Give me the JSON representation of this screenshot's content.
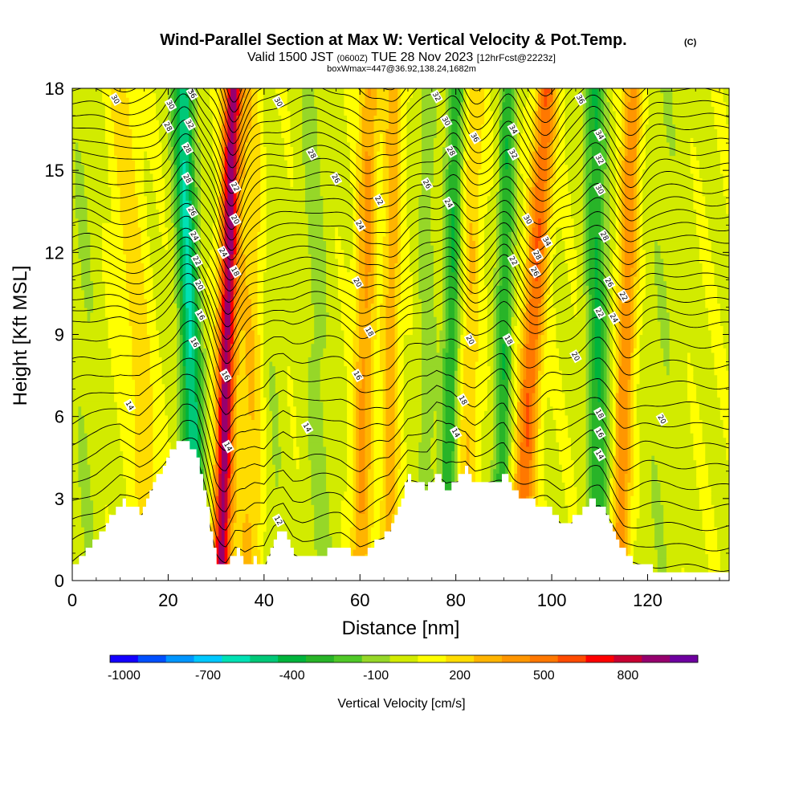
{
  "header": {
    "title": "Wind-Parallel Section at Max W: Vertical Velocity & Pot.Temp.",
    "copyright": "(C)",
    "valid_prefix": "Valid 1500 JST",
    "valid_zulu": "(0600Z)",
    "valid_date": "TUE 28 Nov 2023",
    "forecast": "[12hrFcst@2223z]",
    "box": "boxWmax=447@36.92,138.24,1682m"
  },
  "colors": {
    "levels": [
      "#1400ff",
      "#0050ff",
      "#0096ff",
      "#00c8ff",
      "#00e1b4",
      "#00c878",
      "#00b43c",
      "#28b428",
      "#50c828",
      "#96d728",
      "#d2eb00",
      "#ffff00",
      "#ffdc00",
      "#ffb400",
      "#ff9600",
      "#ff7800",
      "#ff4b00",
      "#ff0000",
      "#c80032",
      "#96006e",
      "#6e00a0"
    ],
    "terrain": "#ffffff",
    "contour": "#000000"
  },
  "chart_data": {
    "type": "contour",
    "xlabel": "Distance [nm]",
    "ylabel": "Height [Kft MSL]",
    "xlim": [
      0,
      137
    ],
    "ylim": [
      0,
      18
    ],
    "xticks": [
      0,
      20,
      40,
      60,
      80,
      100,
      120
    ],
    "yticks": [
      0,
      3,
      6,
      9,
      12,
      15,
      18
    ],
    "fill_variable": "Vertical Velocity [cm/s]",
    "contour_variable": "Potential Temperature",
    "colorbar": {
      "label": "Vertical Velocity [cm/s]",
      "tick_labels": [
        "-1000",
        "-700",
        "-400",
        "-100",
        "200",
        "500",
        "800"
      ],
      "tick_values": [
        -1000,
        -700,
        -400,
        -100,
        200,
        500,
        800
      ],
      "bin_edges": [
        -1050,
        -950,
        -850,
        -750,
        -650,
        -550,
        -450,
        -350,
        -250,
        -150,
        -50,
        50,
        150,
        250,
        350,
        450,
        550,
        650,
        750,
        850,
        950,
        1050
      ]
    },
    "terrain_height_kft": {
      "x": [
        0,
        5,
        10,
        14,
        17,
        20,
        23,
        26,
        28,
        30,
        32,
        34,
        36,
        38,
        40,
        42,
        44,
        46,
        48,
        52,
        56,
        60,
        62,
        66,
        70,
        74,
        76,
        78,
        80,
        82,
        84,
        86,
        88,
        90,
        92,
        95,
        99,
        102,
        104,
        106,
        108,
        110,
        112,
        115,
        118,
        122,
        126,
        130,
        137
      ],
      "y": [
        0.6,
        1.5,
        2.9,
        2.5,
        3.6,
        4.7,
        5.2,
        4.5,
        2.6,
        0.6,
        0.4,
        1.2,
        0.6,
        0.8,
        0.5,
        1.6,
        2.0,
        1.0,
        0.8,
        1.0,
        1.2,
        0.8,
        1.2,
        1.8,
        3.8,
        3.4,
        4.1,
        3.3,
        3.6,
        4.2,
        3.5,
        3.6,
        3.6,
        3.9,
        3.2,
        2.9,
        2.7,
        2.0,
        2.2,
        2.6,
        2.9,
        2.8,
        2.1,
        1.0,
        0.6,
        0.4,
        0.3,
        0.3,
        0.3
      ]
    },
    "w_features": [
      {
        "x_base": 26,
        "x_top": 23,
        "w": -600,
        "width": 2.2
      },
      {
        "x_base": 31,
        "x_top": 33.5,
        "w": 850,
        "width": 1.8
      },
      {
        "x_base": 37,
        "x_top": 38,
        "w": 220,
        "width": 3.5
      },
      {
        "x_base": 17,
        "x_top": 10,
        "w": 160,
        "width": 3.0
      },
      {
        "x_base": 42,
        "x_top": 40,
        "w": -130,
        "width": 2.5
      },
      {
        "x_base": 52,
        "x_top": 50,
        "w": -120,
        "width": 3.0
      },
      {
        "x_base": 60,
        "x_top": 62,
        "w": 330,
        "width": 2.0
      },
      {
        "x_base": 66,
        "x_top": 67,
        "w": 280,
        "width": 1.8
      },
      {
        "x_base": 74,
        "x_top": 74,
        "w": -140,
        "width": 2.0
      },
      {
        "x_base": 78,
        "x_top": 80,
        "w": -380,
        "width": 1.7
      },
      {
        "x_base": 82,
        "x_top": 84,
        "w": 200,
        "width": 2.0
      },
      {
        "x_base": 89,
        "x_top": 91,
        "w": -370,
        "width": 1.7
      },
      {
        "x_base": 93,
        "x_top": 99,
        "w": 500,
        "width": 2.2
      },
      {
        "x_base": 110,
        "x_top": 109,
        "w": -400,
        "width": 2.2
      },
      {
        "x_base": 114,
        "x_top": 117,
        "w": 380,
        "width": 2.0
      },
      {
        "x_base": 122,
        "x_top": 124,
        "w": -80,
        "width": 4.0
      },
      {
        "x_base": 3,
        "x_top": 2,
        "w": -90,
        "width": 3.0
      }
    ],
    "contour_labels": [
      {
        "x": 9,
        "y": 17.6,
        "text": "30"
      },
      {
        "x": 20.5,
        "y": 17.4,
        "text": "30"
      },
      {
        "x": 25,
        "y": 17.8,
        "text": "36"
      },
      {
        "x": 20,
        "y": 16.6,
        "text": "28"
      },
      {
        "x": 24.5,
        "y": 16.7,
        "text": "32"
      },
      {
        "x": 24,
        "y": 15.8,
        "text": "28"
      },
      {
        "x": 24,
        "y": 14.7,
        "text": "28"
      },
      {
        "x": 25,
        "y": 13.5,
        "text": "26"
      },
      {
        "x": 25.5,
        "y": 12.6,
        "text": "24"
      },
      {
        "x": 26,
        "y": 11.7,
        "text": "22"
      },
      {
        "x": 26.5,
        "y": 10.8,
        "text": "20"
      },
      {
        "x": 26.8,
        "y": 9.7,
        "text": "16"
      },
      {
        "x": 25.5,
        "y": 8.7,
        "text": "16"
      },
      {
        "x": 12,
        "y": 6.4,
        "text": "14"
      },
      {
        "x": 34,
        "y": 14.4,
        "text": "22"
      },
      {
        "x": 34,
        "y": 13.2,
        "text": "20"
      },
      {
        "x": 31.5,
        "y": 12.0,
        "text": "24"
      },
      {
        "x": 34,
        "y": 11.3,
        "text": "18"
      },
      {
        "x": 32,
        "y": 7.5,
        "text": "16"
      },
      {
        "x": 32.5,
        "y": 4.9,
        "text": "14"
      },
      {
        "x": 43,
        "y": 2.2,
        "text": "12"
      },
      {
        "x": 49,
        "y": 5.6,
        "text": "14"
      },
      {
        "x": 43,
        "y": 17.5,
        "text": "30"
      },
      {
        "x": 50,
        "y": 15.6,
        "text": "28"
      },
      {
        "x": 55,
        "y": 14.7,
        "text": "26"
      },
      {
        "x": 60,
        "y": 13.0,
        "text": "24"
      },
      {
        "x": 64,
        "y": 13.9,
        "text": "22"
      },
      {
        "x": 59.5,
        "y": 10.9,
        "text": "20"
      },
      {
        "x": 62,
        "y": 9.1,
        "text": "18"
      },
      {
        "x": 59.5,
        "y": 7.5,
        "text": "16"
      },
      {
        "x": 76,
        "y": 17.7,
        "text": "32"
      },
      {
        "x": 78,
        "y": 16.8,
        "text": "30"
      },
      {
        "x": 84,
        "y": 16.2,
        "text": "36"
      },
      {
        "x": 79,
        "y": 15.7,
        "text": "28"
      },
      {
        "x": 74,
        "y": 14.5,
        "text": "26"
      },
      {
        "x": 78.5,
        "y": 13.8,
        "text": "24"
      },
      {
        "x": 83,
        "y": 8.8,
        "text": "20"
      },
      {
        "x": 81.5,
        "y": 6.6,
        "text": "18"
      },
      {
        "x": 80,
        "y": 5.4,
        "text": "14"
      },
      {
        "x": 91,
        "y": 8.8,
        "text": "18"
      },
      {
        "x": 92,
        "y": 16.5,
        "text": "34"
      },
      {
        "x": 92,
        "y": 15.6,
        "text": "32"
      },
      {
        "x": 95,
        "y": 13.2,
        "text": "30"
      },
      {
        "x": 99,
        "y": 12.4,
        "text": "34"
      },
      {
        "x": 97,
        "y": 11.9,
        "text": "28"
      },
      {
        "x": 92,
        "y": 11.7,
        "text": "22"
      },
      {
        "x": 96.5,
        "y": 11.3,
        "text": "26"
      },
      {
        "x": 106,
        "y": 17.6,
        "text": "36"
      },
      {
        "x": 110,
        "y": 16.3,
        "text": "34"
      },
      {
        "x": 110,
        "y": 15.4,
        "text": "32"
      },
      {
        "x": 110,
        "y": 14.3,
        "text": "30"
      },
      {
        "x": 111,
        "y": 12.6,
        "text": "28"
      },
      {
        "x": 112,
        "y": 10.9,
        "text": "26"
      },
      {
        "x": 115,
        "y": 10.4,
        "text": "22"
      },
      {
        "x": 110,
        "y": 9.8,
        "text": "22"
      },
      {
        "x": 113,
        "y": 9.6,
        "text": "24"
      },
      {
        "x": 105,
        "y": 8.2,
        "text": "20"
      },
      {
        "x": 110,
        "y": 6.1,
        "text": "18"
      },
      {
        "x": 110,
        "y": 5.4,
        "text": "16"
      },
      {
        "x": 110,
        "y": 4.6,
        "text": "14"
      },
      {
        "x": 123,
        "y": 5.9,
        "text": "20"
      }
    ]
  }
}
